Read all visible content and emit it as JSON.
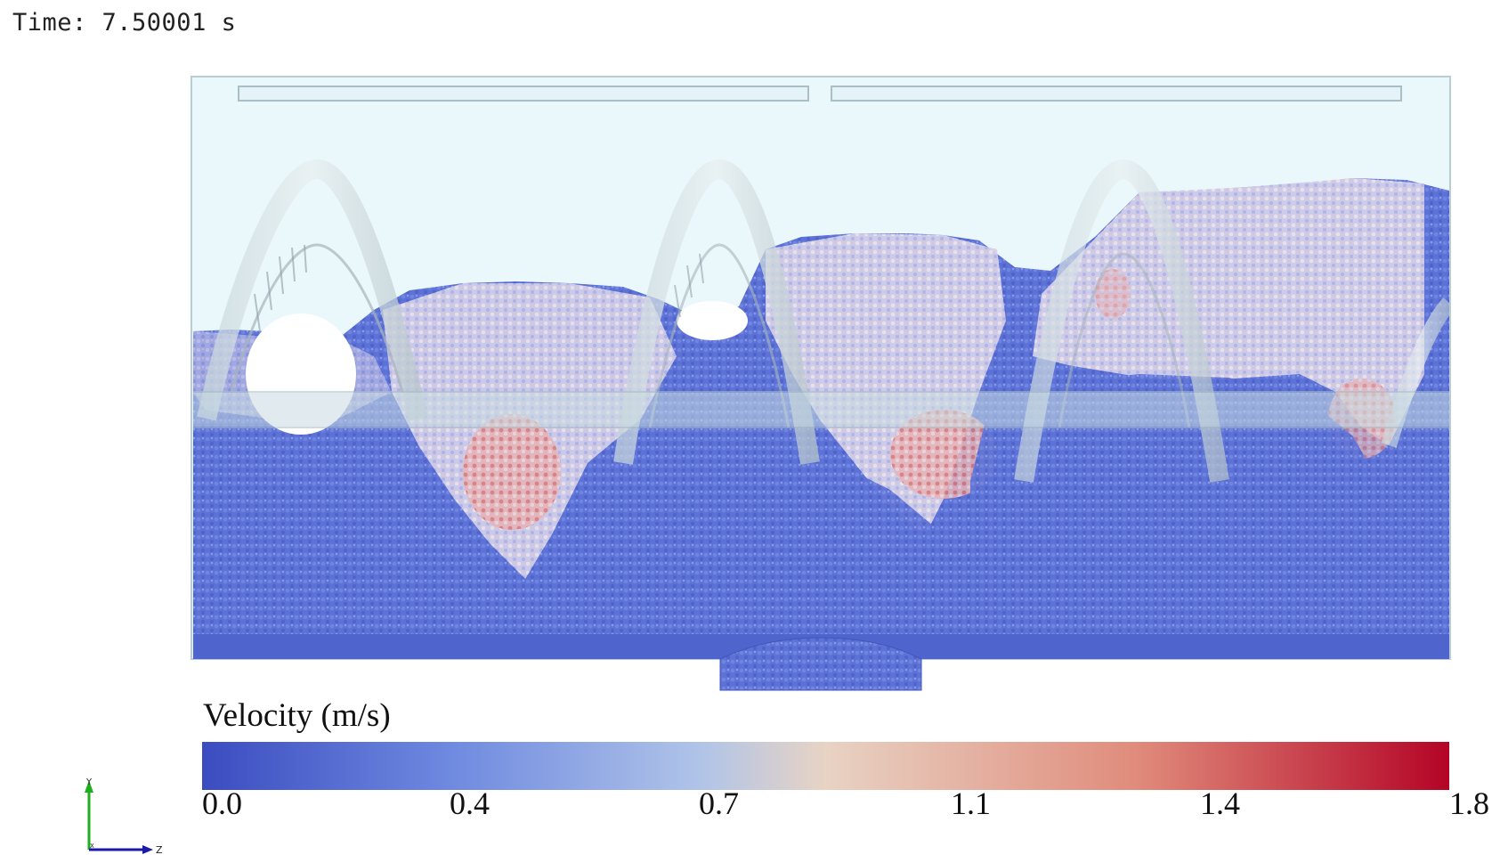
{
  "time_label": "Time: 7.50001 s",
  "legend": {
    "title": "Velocity (m/s)",
    "ticks": [
      "0.0",
      "0.4",
      "0.7",
      "1.1",
      "1.4",
      "1.8"
    ],
    "colormap": [
      "#3b4cc0",
      "#6f8ae0",
      "#b0c4e8",
      "#e8d3c4",
      "#e08b7b",
      "#b40426"
    ]
  },
  "axes": {
    "y_label": "Y",
    "z_label": "Z",
    "x_label": "X"
  }
}
